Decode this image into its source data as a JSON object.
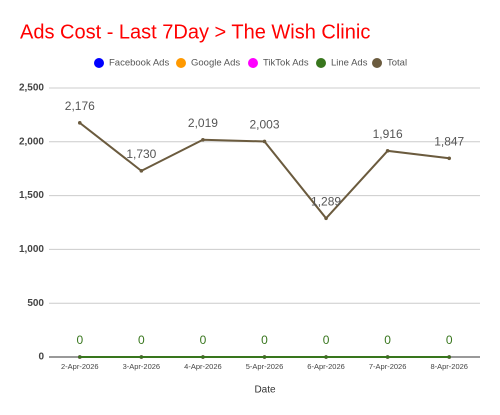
{
  "chart_data": {
    "type": "line",
    "title": "Ads Cost - Last 7Day > The Wish Clinic",
    "x_label": "Date",
    "categories": [
      "2-Apr-2026",
      "3-Apr-2026",
      "4-Apr-2026",
      "5-Apr-2026",
      "6-Apr-2026",
      "7-Apr-2026",
      "8-Apr-2026"
    ],
    "series": [
      {
        "name": "Facebook Ads",
        "color": "#0000ff",
        "values": [
          0,
          0,
          0,
          0,
          0,
          0,
          0
        ]
      },
      {
        "name": "Google Ads",
        "color": "#ff9900",
        "values": [
          0,
          0,
          0,
          0,
          0,
          0,
          0
        ]
      },
      {
        "name": "TikTok Ads",
        "color": "#ff00ff",
        "values": [
          0,
          0,
          0,
          0,
          0,
          0,
          0
        ]
      },
      {
        "name": "Line Ads",
        "color": "#38761d",
        "values": [
          0,
          0,
          0,
          0,
          0,
          0,
          0
        ],
        "data_labels": true
      },
      {
        "name": "Total",
        "color": "#6b5b3e",
        "values": [
          2176,
          1730,
          2019,
          2003,
          1289,
          1916,
          1847
        ],
        "value_labels": [
          "2,176",
          "1,730",
          "2,019",
          "2,003",
          "1,289",
          "1,916",
          "1,847"
        ],
        "data_labels": true
      }
    ],
    "ylim": [
      0,
      2500
    ],
    "yticks": [
      0,
      500,
      {
        "value": 1000,
        "label": "1,000"
      },
      {
        "value": 1500,
        "label": "1,500"
      },
      {
        "value": 2000,
        "label": "2,000"
      },
      {
        "value": 2500,
        "label": "2,500"
      }
    ],
    "grid": true,
    "title_color": "#ff0000"
  }
}
